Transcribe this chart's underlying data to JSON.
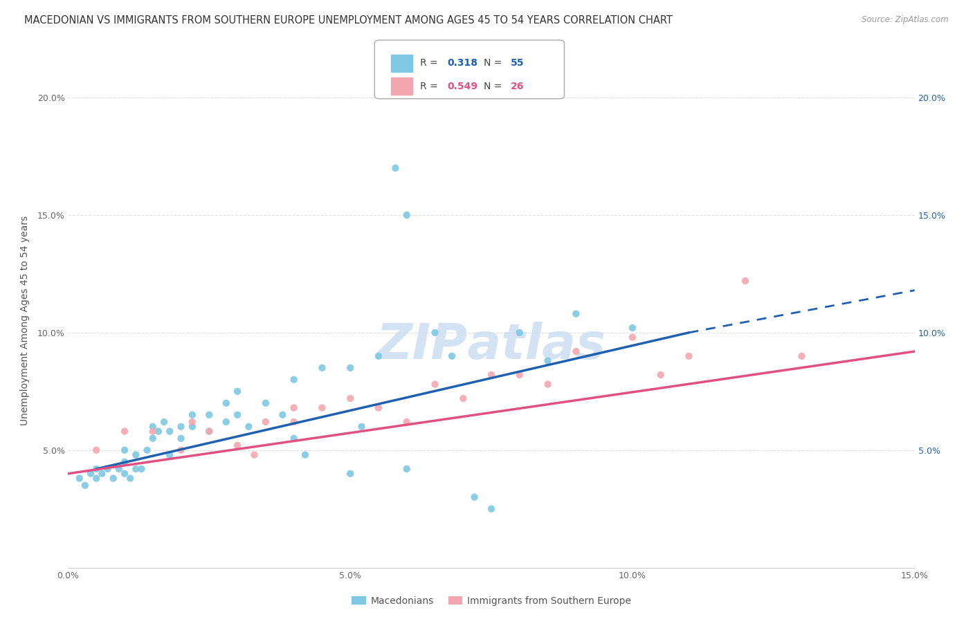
{
  "title": "MACEDONIAN VS IMMIGRANTS FROM SOUTHERN EUROPE UNEMPLOYMENT AMONG AGES 45 TO 54 YEARS CORRELATION CHART",
  "source": "Source: ZipAtlas.com",
  "ylabel": "Unemployment Among Ages 45 to 54 years",
  "xmin": 0.0,
  "xmax": 0.15,
  "ymin": 0.0,
  "ymax": 0.21,
  "x_ticks": [
    0.0,
    0.05,
    0.1,
    0.15
  ],
  "x_tick_labels": [
    "0.0%",
    "5.0%",
    "10.0%",
    "15.0%"
  ],
  "y_ticks": [
    0.05,
    0.1,
    0.15,
    0.2
  ],
  "y_tick_labels": [
    "5.0%",
    "10.0%",
    "15.0%",
    "20.0%"
  ],
  "legend_labels": [
    "Macedonians",
    "Immigrants from Southern Europe"
  ],
  "blue_R": "0.318",
  "blue_N": "55",
  "pink_R": "0.549",
  "pink_N": "26",
  "blue_color": "#7ec8e3",
  "pink_color": "#f4a6b0",
  "blue_line_color": "#2060b0",
  "pink_line_color": "#e05080",
  "watermark_color": "#c8ddf0",
  "blue_scatter": [
    [
      0.002,
      0.038
    ],
    [
      0.003,
      0.035
    ],
    [
      0.004,
      0.04
    ],
    [
      0.005,
      0.038
    ],
    [
      0.005,
      0.042
    ],
    [
      0.006,
      0.04
    ],
    [
      0.007,
      0.042
    ],
    [
      0.008,
      0.038
    ],
    [
      0.009,
      0.042
    ],
    [
      0.01,
      0.04
    ],
    [
      0.01,
      0.045
    ],
    [
      0.01,
      0.05
    ],
    [
      0.011,
      0.038
    ],
    [
      0.012,
      0.042
    ],
    [
      0.012,
      0.048
    ],
    [
      0.013,
      0.042
    ],
    [
      0.014,
      0.05
    ],
    [
      0.015,
      0.055
    ],
    [
      0.015,
      0.06
    ],
    [
      0.016,
      0.058
    ],
    [
      0.017,
      0.062
    ],
    [
      0.018,
      0.048
    ],
    [
      0.018,
      0.058
    ],
    [
      0.02,
      0.06
    ],
    [
      0.02,
      0.055
    ],
    [
      0.022,
      0.065
    ],
    [
      0.022,
      0.06
    ],
    [
      0.025,
      0.065
    ],
    [
      0.025,
      0.058
    ],
    [
      0.028,
      0.07
    ],
    [
      0.028,
      0.062
    ],
    [
      0.03,
      0.075
    ],
    [
      0.03,
      0.065
    ],
    [
      0.032,
      0.06
    ],
    [
      0.035,
      0.07
    ],
    [
      0.038,
      0.065
    ],
    [
      0.04,
      0.08
    ],
    [
      0.04,
      0.055
    ],
    [
      0.042,
      0.048
    ],
    [
      0.045,
      0.085
    ],
    [
      0.05,
      0.085
    ],
    [
      0.05,
      0.04
    ],
    [
      0.052,
      0.06
    ],
    [
      0.055,
      0.09
    ],
    [
      0.058,
      0.17
    ],
    [
      0.06,
      0.042
    ],
    [
      0.06,
      0.15
    ],
    [
      0.065,
      0.1
    ],
    [
      0.068,
      0.09
    ],
    [
      0.072,
      0.03
    ],
    [
      0.075,
      0.025
    ],
    [
      0.08,
      0.1
    ],
    [
      0.085,
      0.088
    ],
    [
      0.09,
      0.108
    ],
    [
      0.1,
      0.102
    ]
  ],
  "pink_scatter": [
    [
      0.005,
      0.05
    ],
    [
      0.01,
      0.058
    ],
    [
      0.015,
      0.058
    ],
    [
      0.02,
      0.05
    ],
    [
      0.022,
      0.062
    ],
    [
      0.025,
      0.058
    ],
    [
      0.03,
      0.052
    ],
    [
      0.033,
      0.048
    ],
    [
      0.035,
      0.062
    ],
    [
      0.04,
      0.062
    ],
    [
      0.04,
      0.068
    ],
    [
      0.045,
      0.068
    ],
    [
      0.05,
      0.072
    ],
    [
      0.055,
      0.068
    ],
    [
      0.06,
      0.062
    ],
    [
      0.065,
      0.078
    ],
    [
      0.07,
      0.072
    ],
    [
      0.075,
      0.082
    ],
    [
      0.08,
      0.082
    ],
    [
      0.085,
      0.078
    ],
    [
      0.09,
      0.092
    ],
    [
      0.1,
      0.098
    ],
    [
      0.105,
      0.082
    ],
    [
      0.11,
      0.09
    ],
    [
      0.12,
      0.122
    ],
    [
      0.13,
      0.09
    ]
  ],
  "blue_trendline_solid": [
    [
      0.005,
      0.042
    ],
    [
      0.11,
      0.1
    ]
  ],
  "blue_trendline_dashed": [
    [
      0.11,
      0.1
    ],
    [
      0.15,
      0.118
    ]
  ],
  "pink_trendline": [
    [
      0.0,
      0.04
    ],
    [
      0.15,
      0.092
    ]
  ],
  "background_color": "#ffffff",
  "grid_color": "#e0e0e0",
  "title_fontsize": 10.5,
  "axis_fontsize": 10,
  "tick_fontsize": 9
}
